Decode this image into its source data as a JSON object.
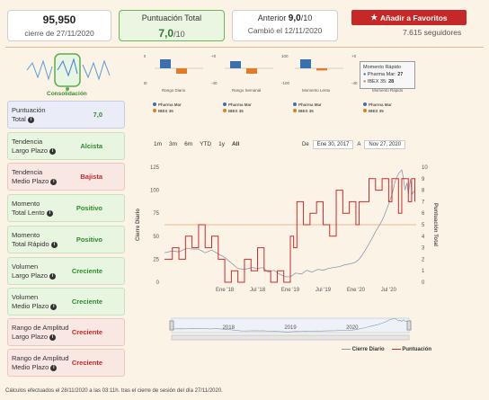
{
  "header": {
    "price": "95,950",
    "price_date": "cierre de 27/11/2020",
    "total_label": "Puntuación Total",
    "total_value": "7,0",
    "total_max": "/10",
    "previous_label": "Anterior",
    "previous_value": "9,0",
    "previous_max": "/10",
    "previous_date": "Cambió el 12/11/2020",
    "favorite_button": "Añadir a Favoritos",
    "followers": "7.615 seguidores"
  },
  "consolidation": {
    "label": "Consolidación"
  },
  "mini_charts": {
    "labels": [
      "Rango Diario",
      "Rango Semanal",
      "Momento Lento",
      "Momento Rápido"
    ],
    "left_ticks": [
      [
        "+0",
        "-40"
      ],
      [
        "+0",
        "-40"
      ],
      [
        "100",
        "-100"
      ],
      [
        "+0",
        "-40"
      ]
    ],
    "legend_a": "Pharma Mar",
    "legend_b": "IBEX 35",
    "tooltip": {
      "title": "Momento Rápido",
      "line1_name": "Pharma Mar:",
      "line1_value": "27",
      "line2_name": "IBEX 35:",
      "line2_value": "28"
    }
  },
  "indicators": [
    {
      "label1": "Puntuación",
      "label2": "Total",
      "value": "7,0",
      "tone": "blue"
    },
    {
      "label1": "Tendencia",
      "label2": "Largo Plazo",
      "value": "Alcista",
      "tone": "green"
    },
    {
      "label1": "Tendencia",
      "label2": "Medio Plazo",
      "value": "Bajista",
      "tone": "red"
    },
    {
      "label1": "Momento",
      "label2": "Total Lento",
      "value": "Positivo",
      "tone": "green"
    },
    {
      "label1": "Momento",
      "label2": "Total Rápido",
      "value": "Positivo",
      "tone": "green"
    },
    {
      "label1": "Volumen",
      "label2": "Largo Plazo",
      "value": "Creciente",
      "tone": "green"
    },
    {
      "label1": "Volumen",
      "label2": "Medio Plazo",
      "value": "Creciente",
      "tone": "green"
    },
    {
      "label1": "Rango de Amplitud",
      "label2": "Largo Plazo",
      "value": "Creciente",
      "tone": "red"
    },
    {
      "label1": "Rango de Amplitud",
      "label2": "Medio Plazo",
      "value": "Creciente",
      "tone": "red"
    }
  ],
  "range_selector": {
    "buttons": [
      "1m",
      "3m",
      "6m",
      "YTD",
      "1y",
      "All"
    ],
    "active": "All",
    "from_label": "De",
    "from_value": "Ene 30, 2017",
    "to_label": "A",
    "to_value": "Nov 27, 2020"
  },
  "chart_data": {
    "type": "line",
    "x_ticks": [
      "Ene '18",
      "Jul '18",
      "Ene '19",
      "Jul '19",
      "Ene '20",
      "Jul '20"
    ],
    "y_left_label": "Cierre Diario",
    "y_left_ticks": [
      0,
      25,
      50,
      75,
      100,
      125
    ],
    "y_left_range": [
      0,
      125
    ],
    "y_right_label": "Puntuación Total",
    "y_right_ticks": [
      0,
      1,
      2,
      3,
      4,
      5,
      6,
      7,
      8,
      9,
      10
    ],
    "y_right_range": [
      0,
      10
    ],
    "navigator_labels": [
      "2018",
      "2019",
      "2020"
    ],
    "reference_line_score": 5,
    "series": [
      {
        "name": "Cierre Diario",
        "color": "#8b97ad",
        "points": [
          [
            2017.08,
            32
          ],
          [
            2017.2,
            34
          ],
          [
            2017.3,
            33
          ],
          [
            2017.42,
            37
          ],
          [
            2017.5,
            36
          ],
          [
            2017.6,
            36
          ],
          [
            2017.7,
            32
          ],
          [
            2017.8,
            35
          ],
          [
            2017.92,
            30
          ],
          [
            2018.0,
            27
          ],
          [
            2018.08,
            22
          ],
          [
            2018.2,
            15
          ],
          [
            2018.3,
            14
          ],
          [
            2018.42,
            16
          ],
          [
            2018.5,
            15
          ],
          [
            2018.58,
            16
          ],
          [
            2018.66,
            11
          ],
          [
            2018.75,
            13
          ],
          [
            2018.83,
            9
          ],
          [
            2018.92,
            6
          ],
          [
            2019.0,
            6
          ],
          [
            2019.08,
            10
          ],
          [
            2019.17,
            9
          ],
          [
            2019.25,
            13
          ],
          [
            2019.33,
            11
          ],
          [
            2019.42,
            14
          ],
          [
            2019.5,
            13
          ],
          [
            2019.58,
            15
          ],
          [
            2019.66,
            16
          ],
          [
            2019.75,
            17
          ],
          [
            2019.83,
            19
          ],
          [
            2019.92,
            20
          ],
          [
            2020.0,
            22
          ],
          [
            2020.05,
            25
          ],
          [
            2020.1,
            30
          ],
          [
            2020.17,
            38
          ],
          [
            2020.25,
            48
          ],
          [
            2020.3,
            55
          ],
          [
            2020.36,
            62
          ],
          [
            2020.42,
            70
          ],
          [
            2020.5,
            85
          ],
          [
            2020.55,
            95
          ],
          [
            2020.6,
            110
          ],
          [
            2020.65,
            118
          ],
          [
            2020.7,
            122
          ],
          [
            2020.72,
            115
          ],
          [
            2020.75,
            100
          ],
          [
            2020.78,
            108
          ],
          [
            2020.8,
            96
          ],
          [
            2020.83,
            112
          ],
          [
            2020.86,
            96
          ],
          [
            2020.9,
            100
          ]
        ]
      },
      {
        "name": "Puntuación",
        "color": "#cc2a2a",
        "points": [
          [
            2017.08,
            2
          ],
          [
            2017.2,
            2
          ],
          [
            2017.2,
            3
          ],
          [
            2017.3,
            3
          ],
          [
            2017.3,
            2
          ],
          [
            2017.4,
            2
          ],
          [
            2017.4,
            4
          ],
          [
            2017.5,
            4
          ],
          [
            2017.5,
            3
          ],
          [
            2017.6,
            3
          ],
          [
            2017.6,
            5
          ],
          [
            2017.7,
            5
          ],
          [
            2017.7,
            3
          ],
          [
            2017.8,
            3
          ],
          [
            2017.8,
            4
          ],
          [
            2017.9,
            4
          ],
          [
            2017.9,
            2
          ],
          [
            2018.0,
            2
          ],
          [
            2018.0,
            0
          ],
          [
            2018.1,
            0
          ],
          [
            2018.1,
            1
          ],
          [
            2018.2,
            1
          ],
          [
            2018.2,
            0
          ],
          [
            2018.3,
            0
          ],
          [
            2018.3,
            2
          ],
          [
            2018.4,
            2
          ],
          [
            2018.4,
            1
          ],
          [
            2018.5,
            1
          ],
          [
            2018.5,
            3
          ],
          [
            2018.6,
            3
          ],
          [
            2018.6,
            1
          ],
          [
            2018.7,
            1
          ],
          [
            2018.7,
            0
          ],
          [
            2018.8,
            0
          ],
          [
            2018.8,
            1
          ],
          [
            2018.9,
            1
          ],
          [
            2018.9,
            0
          ],
          [
            2019.0,
            0
          ],
          [
            2019.0,
            4
          ],
          [
            2019.05,
            4
          ],
          [
            2019.05,
            3
          ],
          [
            2019.1,
            3
          ],
          [
            2019.1,
            7
          ],
          [
            2019.2,
            7
          ],
          [
            2019.2,
            5
          ],
          [
            2019.3,
            5
          ],
          [
            2019.3,
            6
          ],
          [
            2019.4,
            6
          ],
          [
            2019.4,
            7
          ],
          [
            2019.5,
            7
          ],
          [
            2019.5,
            5
          ],
          [
            2019.6,
            5
          ],
          [
            2019.6,
            4
          ],
          [
            2019.7,
            4
          ],
          [
            2019.7,
            8
          ],
          [
            2019.8,
            8
          ],
          [
            2019.8,
            6
          ],
          [
            2019.9,
            6
          ],
          [
            2019.9,
            7
          ],
          [
            2020.0,
            7
          ],
          [
            2020.0,
            5
          ],
          [
            2020.05,
            5
          ],
          [
            2020.05,
            7
          ],
          [
            2020.2,
            7
          ],
          [
            2020.2,
            9
          ],
          [
            2020.3,
            9
          ],
          [
            2020.3,
            8
          ],
          [
            2020.4,
            8
          ],
          [
            2020.4,
            9
          ],
          [
            2020.5,
            9
          ],
          [
            2020.5,
            7
          ],
          [
            2020.55,
            7
          ],
          [
            2020.55,
            9
          ],
          [
            2020.65,
            9
          ],
          [
            2020.65,
            6
          ],
          [
            2020.7,
            6
          ],
          [
            2020.7,
            9
          ],
          [
            2020.8,
            9
          ],
          [
            2020.8,
            7
          ],
          [
            2020.85,
            7
          ],
          [
            2020.85,
            9
          ],
          [
            2020.9,
            9
          ],
          [
            2020.9,
            7
          ]
        ]
      }
    ]
  },
  "chart_legend": {
    "close": "Cierre Diario",
    "score": "Puntuación"
  },
  "footer": "Cálculos efectuados el 28/11/2020 a las 03:11h. tras el cierre de sesión del día 27/11/2020."
}
